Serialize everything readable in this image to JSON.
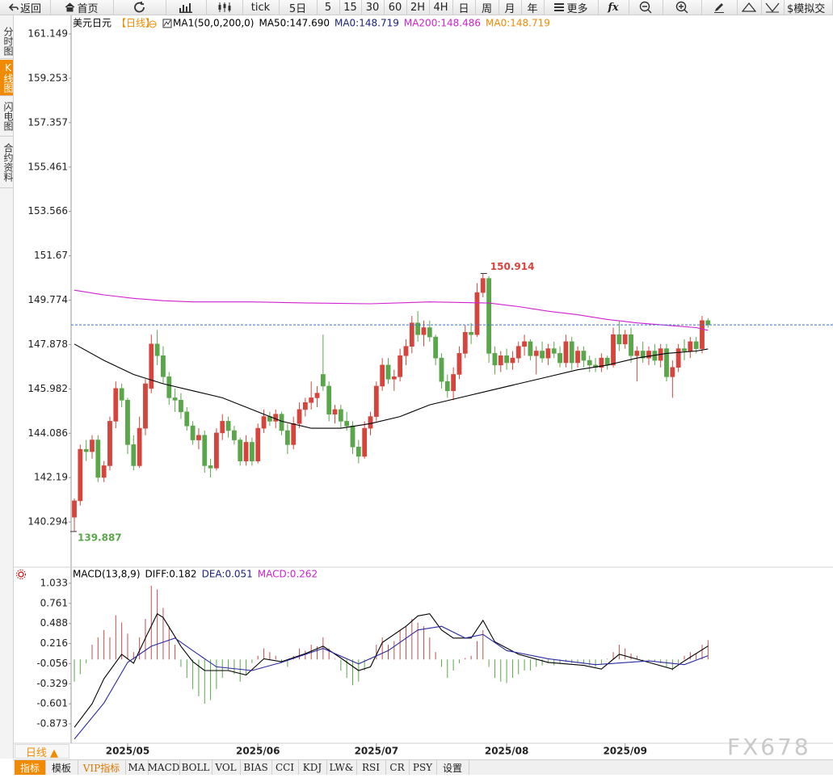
{
  "toolbar": [
    "返回",
    "首页",
    "tick",
    "5日",
    "5",
    "15",
    "30",
    "60",
    "2H",
    "4H",
    "日",
    "周",
    "月",
    "年",
    "更多",
    "fx",
    "$模拟交"
  ],
  "side_tabs": [
    "分时图",
    "K线图",
    "闪电图",
    "合约资料"
  ],
  "chart_data": [
    {
      "type": "candlestick",
      "legend": [
        {
          "text": "美元日元",
          "color": "#000000"
        },
        {
          "text": "【日线】",
          "color": "#f08a00"
        },
        {
          "text": "MA1(50,0,200,0)",
          "color": "#000000"
        },
        {
          "text": "MA50:147.690",
          "color": "#000000"
        },
        {
          "text": "MA0:148.719",
          "color": "#1a237e"
        },
        {
          "text": "MA200:148.486",
          "color": "#d020d0"
        },
        {
          "text": "MA0:148.719",
          "color": "#f08a00"
        }
      ],
      "max_label": "150.914",
      "min_label": "139.887",
      "up_color": "#d6453d",
      "down_color": "#5aa64a",
      "last_line_color": "#3a6fd8",
      "ylim": [
        138.4,
        161.943
      ],
      "yticks": [
        161.149,
        159.253,
        157.357,
        155.461,
        153.566,
        151.67,
        149.774,
        147.878,
        145.982,
        144.086,
        142.19,
        140.294
      ],
      "xticks": [
        {
          "value": 9,
          "label": "2025/05"
        },
        {
          "value": 31,
          "label": "2025/06"
        },
        {
          "value": 51,
          "label": "2025/07"
        },
        {
          "value": 73,
          "label": "2025/08"
        },
        {
          "value": 93,
          "label": "2025/09"
        }
      ],
      "candles": [
        [
          140.5,
          141.3,
          139.887,
          141.2
        ],
        [
          141.2,
          143.6,
          141.0,
          143.4
        ],
        [
          143.4,
          143.8,
          142.9,
          143.3
        ],
        [
          143.3,
          144.0,
          143.0,
          143.8
        ],
        [
          143.8,
          144.0,
          142.0,
          142.2
        ],
        [
          142.2,
          142.9,
          142.0,
          142.7
        ],
        [
          142.7,
          144.8,
          142.5,
          144.6
        ],
        [
          144.6,
          146.3,
          144.3,
          146.0
        ],
        [
          146.0,
          146.2,
          145.2,
          145.5
        ],
        [
          145.5,
          145.6,
          143.2,
          143.6
        ],
        [
          143.6,
          144.0,
          142.5,
          142.7
        ],
        [
          142.7,
          144.8,
          142.6,
          144.3
        ],
        [
          144.3,
          146.4,
          144.0,
          146.2
        ],
        [
          146.0,
          148.3,
          145.8,
          147.9
        ],
        [
          147.9,
          148.5,
          147.0,
          147.4
        ],
        [
          147.4,
          147.8,
          146.2,
          146.5
        ],
        [
          146.5,
          146.7,
          145.3,
          145.6
        ],
        [
          145.6,
          146.0,
          145.0,
          145.5
        ],
        [
          145.5,
          145.8,
          144.7,
          145.0
        ],
        [
          145.0,
          145.2,
          144.2,
          144.4
        ],
        [
          144.4,
          144.6,
          143.6,
          143.8
        ],
        [
          143.8,
          144.3,
          143.4,
          144.0
        ],
        [
          144.0,
          144.2,
          142.4,
          142.7
        ],
        [
          142.7,
          143.0,
          142.2,
          142.6
        ],
        [
          142.6,
          144.3,
          142.5,
          144.1
        ],
        [
          144.1,
          144.9,
          143.8,
          144.6
        ],
        [
          144.6,
          144.8,
          143.9,
          144.2
        ],
        [
          144.2,
          144.4,
          143.6,
          143.8
        ],
        [
          143.8,
          143.9,
          142.7,
          142.9
        ],
        [
          142.9,
          144.0,
          142.7,
          143.7
        ],
        [
          143.7,
          143.9,
          142.7,
          142.9
        ],
        [
          142.9,
          144.5,
          142.8,
          144.3
        ],
        [
          144.3,
          145.1,
          144.1,
          144.8
        ],
        [
          144.8,
          145.0,
          144.4,
          144.6
        ],
        [
          144.6,
          145.1,
          144.3,
          144.9
        ],
        [
          144.9,
          145.0,
          144.0,
          144.2
        ],
        [
          144.2,
          144.5,
          143.2,
          143.6
        ],
        [
          143.6,
          144.8,
          143.4,
          144.5
        ],
        [
          144.5,
          145.4,
          144.3,
          145.1
        ],
        [
          145.1,
          145.6,
          144.8,
          145.4
        ],
        [
          145.4,
          146.3,
          145.1,
          145.6
        ],
        [
          145.6,
          146.1,
          145.2,
          145.8
        ],
        [
          146.6,
          148.3,
          145.9,
          146.1
        ],
        [
          146.1,
          146.3,
          144.6,
          144.9
        ],
        [
          144.9,
          145.3,
          144.5,
          145.1
        ],
        [
          145.1,
          145.3,
          144.3,
          144.6
        ],
        [
          144.6,
          145.0,
          144.2,
          144.4
        ],
        [
          144.4,
          144.6,
          143.2,
          143.5
        ],
        [
          143.5,
          143.8,
          142.8,
          143.1
        ],
        [
          143.1,
          144.6,
          143.0,
          144.3
        ],
        [
          144.3,
          145.0,
          144.0,
          144.8
        ],
        [
          144.8,
          146.3,
          144.6,
          146.1
        ],
        [
          146.1,
          147.3,
          145.9,
          147.0
        ],
        [
          147.0,
          147.3,
          146.2,
          146.4
        ],
        [
          146.4,
          146.8,
          145.9,
          146.5
        ],
        [
          146.5,
          147.7,
          146.3,
          147.4
        ],
        [
          147.4,
          148.1,
          147.0,
          147.8
        ],
        [
          147.8,
          149.1,
          147.5,
          148.8
        ],
        [
          148.8,
          149.3,
          148.0,
          148.3
        ],
        [
          148.3,
          148.9,
          147.8,
          148.6
        ],
        [
          148.6,
          148.9,
          148.0,
          148.2
        ],
        [
          148.2,
          148.3,
          147.0,
          147.3
        ],
        [
          147.3,
          147.5,
          146.0,
          146.3
        ],
        [
          146.3,
          146.6,
          145.6,
          145.9
        ],
        [
          145.9,
          146.9,
          145.5,
          146.6
        ],
        [
          146.6,
          147.8,
          146.4,
          147.5
        ],
        [
          147.5,
          148.7,
          147.3,
          148.4
        ],
        [
          148.4,
          148.8,
          147.9,
          148.3
        ],
        [
          148.3,
          150.5,
          148.2,
          150.1
        ],
        [
          150.1,
          150.914,
          149.9,
          150.7
        ],
        [
          150.7,
          150.8,
          147.1,
          147.5
        ],
        [
          147.5,
          147.8,
          146.6,
          147.0
        ],
        [
          147.0,
          147.6,
          146.7,
          147.4
        ],
        [
          147.4,
          147.7,
          146.8,
          147.1
        ],
        [
          147.1,
          147.6,
          146.8,
          147.3
        ],
        [
          147.3,
          148.0,
          147.1,
          147.8
        ],
        [
          147.8,
          148.3,
          147.4,
          148.0
        ],
        [
          148.0,
          148.1,
          147.2,
          147.4
        ],
        [
          147.4,
          147.8,
          146.6,
          147.6
        ],
        [
          147.6,
          148.0,
          147.1,
          147.3
        ],
        [
          147.3,
          147.9,
          147.0,
          147.7
        ],
        [
          147.7,
          148.0,
          147.3,
          147.5
        ],
        [
          147.5,
          147.8,
          146.9,
          147.1
        ],
        [
          147.1,
          148.3,
          146.9,
          148.0
        ],
        [
          148.0,
          148.2,
          146.8,
          147.1
        ],
        [
          147.1,
          147.8,
          146.9,
          147.6
        ],
        [
          147.6,
          147.8,
          146.9,
          147.2
        ],
        [
          147.2,
          147.4,
          146.7,
          147.0
        ],
        [
          147.0,
          147.3,
          146.7,
          146.9
        ],
        [
          146.9,
          147.5,
          146.7,
          147.3
        ],
        [
          147.3,
          147.4,
          146.8,
          147.0
        ],
        [
          147.0,
          148.6,
          146.9,
          148.3
        ],
        [
          148.3,
          148.9,
          147.6,
          147.9
        ],
        [
          147.9,
          148.5,
          147.7,
          148.3
        ],
        [
          148.3,
          148.6,
          147.1,
          147.4
        ],
        [
          147.4,
          147.8,
          146.3,
          147.6
        ],
        [
          147.6,
          148.0,
          147.1,
          147.3
        ],
        [
          147.3,
          147.8,
          147.0,
          147.6
        ],
        [
          147.6,
          147.9,
          147.0,
          147.2
        ],
        [
          147.2,
          147.9,
          146.9,
          147.7
        ],
        [
          147.7,
          147.9,
          146.3,
          146.5
        ],
        [
          146.5,
          147.2,
          145.6,
          146.9
        ],
        [
          146.9,
          147.9,
          146.7,
          147.7
        ],
        [
          147.7,
          148.1,
          147.2,
          147.6
        ],
        [
          147.6,
          148.2,
          147.3,
          148.0
        ],
        [
          148.0,
          148.2,
          147.5,
          147.7
        ],
        [
          147.7,
          149.1,
          147.5,
          148.9
        ],
        [
          148.9,
          149.0,
          148.6,
          148.719
        ]
      ],
      "lines": [
        {
          "color": "#000000",
          "x": [
            0,
            5,
            10,
            15,
            20,
            25,
            30,
            35,
            40,
            45,
            50,
            55,
            60,
            65,
            70,
            75,
            80,
            85,
            90,
            95,
            100,
            105,
            107
          ],
          "values": [
            147.9,
            147.2,
            146.6,
            146.2,
            145.9,
            145.6,
            145.1,
            144.6,
            144.3,
            144.3,
            144.5,
            144.8,
            145.3,
            145.6,
            145.9,
            146.2,
            146.5,
            146.8,
            147.0,
            147.3,
            147.5,
            147.6,
            147.69
          ]
        },
        {
          "color": "#d020d0",
          "x": [
            0,
            5,
            10,
            15,
            20,
            30,
            40,
            50,
            60,
            70,
            75,
            80,
            85,
            90,
            95,
            100,
            105,
            107
          ],
          "values": [
            150.2,
            150.0,
            149.85,
            149.75,
            149.7,
            149.7,
            149.65,
            149.62,
            149.7,
            149.65,
            149.5,
            149.3,
            149.15,
            148.95,
            148.8,
            148.7,
            148.6,
            148.486
          ]
        }
      ]
    },
    {
      "type": "macd",
      "legend": [
        {
          "text": "MACD(13,8,9)",
          "color": "#000000"
        },
        {
          "text": "DIFF:0.182",
          "color": "#000000"
        },
        {
          "text": "DEA:0.051",
          "color": "#1a237e"
        },
        {
          "text": "MACD:0.262",
          "color": "#d020d0"
        }
      ],
      "ylim": [
        -1.114,
        1.219
      ],
      "yticks": [
        1.033,
        0.761,
        0.488,
        0.216,
        -0.056,
        -0.329,
        -0.601,
        -0.873
      ],
      "up_color": "#c0504d",
      "down_color": "#5aa64a",
      "histogram": [
        -0.3,
        -0.2,
        -0.05,
        0.2,
        0.3,
        0.4,
        0.3,
        0.6,
        0.5,
        0.35,
        0.1,
        0.3,
        0.55,
        1.0,
        0.95,
        0.7,
        0.45,
        0.2,
        -0.1,
        -0.25,
        -0.4,
        -0.5,
        -0.6,
        -0.55,
        -0.4,
        -0.25,
        -0.15,
        -0.2,
        -0.3,
        -0.2,
        -0.05,
        0.05,
        0.15,
        0.1,
        0.05,
        -0.05,
        -0.1,
        0.05,
        0.15,
        0.12,
        0.2,
        0.18,
        0.3,
        0.15,
        0.01,
        -0.15,
        -0.25,
        -0.35,
        -0.3,
        -0.15,
        0.01,
        0.2,
        0.3,
        0.2,
        0.25,
        0.4,
        0.45,
        0.55,
        0.5,
        0.45,
        0.3,
        0.1,
        -0.1,
        -0.25,
        -0.15,
        -0.05,
        0.02,
        0.05,
        0.25,
        0.4,
        -0.1,
        -0.25,
        -0.3,
        -0.32,
        -0.25,
        -0.2,
        -0.15,
        -0.15,
        -0.1,
        -0.08,
        -0.05,
        -0.08,
        -0.06,
        -0.03,
        -0.05,
        -0.04,
        -0.06,
        -0.08,
        -0.1,
        -0.06,
        0.01,
        0.1,
        0.2,
        0.15,
        0.08,
        0.05,
        -0.03,
        -0.01,
        -0.03,
        -0.05,
        -0.1,
        -0.15,
        -0.05,
        0.05,
        0.1,
        0.08,
        0.2,
        0.262
      ],
      "lines": [
        {
          "color": "#000000",
          "x": [
            0,
            3,
            5,
            8,
            10,
            12,
            14,
            15,
            18,
            20,
            22,
            26,
            29,
            32,
            35,
            39,
            42,
            45,
            48,
            50,
            52,
            56,
            58,
            60,
            62,
            64,
            67,
            69,
            71,
            75,
            80,
            86,
            89,
            92,
            97,
            101,
            103,
            107
          ],
          "values": [
            -0.92,
            -0.6,
            -0.26,
            0.07,
            -0.05,
            0.29,
            0.62,
            0.57,
            0.18,
            -0.03,
            -0.15,
            -0.15,
            -0.21,
            0.01,
            -0.03,
            0.08,
            0.18,
            0.02,
            -0.15,
            -0.1,
            0.23,
            0.45,
            0.59,
            0.62,
            0.4,
            0.29,
            0.29,
            0.53,
            0.24,
            0.07,
            -0.04,
            -0.08,
            -0.13,
            0.07,
            -0.04,
            -0.13,
            -0.02,
            0.182
          ]
        },
        {
          "color": "#2a2aa0",
          "x": [
            0,
            5,
            9,
            13,
            17,
            20,
            24,
            30,
            35,
            42,
            48,
            53,
            58,
            62,
            66,
            69,
            73,
            80,
            88,
            97,
            103,
            107
          ],
          "values": [
            -1.08,
            -0.59,
            -0.04,
            0.18,
            0.29,
            0.12,
            -0.1,
            -0.15,
            -0.04,
            0.15,
            -0.06,
            0.12,
            0.4,
            0.45,
            0.29,
            0.34,
            0.12,
            0.01,
            -0.07,
            -0.02,
            -0.07,
            0.051
          ]
        }
      ]
    }
  ],
  "period_button": "日线 ▲",
  "bottom_tabs": [
    "指标",
    "模板",
    "VIP指标",
    "MA",
    "MACD",
    "BOLL",
    "VOL",
    "BIAS",
    "CCI",
    "KDJ",
    "LW&",
    "RSI",
    "CR",
    "PSY",
    "设置"
  ],
  "watermark": "FX678"
}
